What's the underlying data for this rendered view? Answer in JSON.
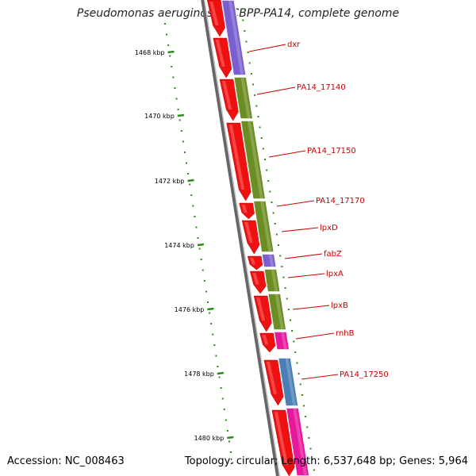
{
  "title": "Pseudomonas aeruginosa UCBPP-PA14, complete genome",
  "footer": {
    "accession": "Accession: NC_008463",
    "summary": "Topology: circular; Length: 6,537,648 bp; Genes: 5,964"
  },
  "colors": {
    "backbone": "#7f7f7f",
    "ruler_tick": "#2a8a1a",
    "label": "#cc0000",
    "strand_red": "#ee1111",
    "purple": "#7a5fd0",
    "olive": "#6b8e23",
    "magenta": "#e6189c",
    "steelblue": "#4a7fb5"
  },
  "ruler_labels": [
    "1468 kbp",
    "1470 kbp",
    "1472 kbp",
    "1474 kbp",
    "1476 kbp",
    "1478 kbp",
    "1480 kbp"
  ],
  "gene_labels": [
    {
      "name": "dxr"
    },
    {
      "name": "PA14_17140"
    },
    {
      "name": "PA14_17150"
    },
    {
      "name": "PA14_17170"
    },
    {
      "name": "lpxD"
    },
    {
      "name": "fabZ"
    },
    {
      "name": "lpxA"
    },
    {
      "name": "lpxB"
    },
    {
      "name": "rnhB"
    },
    {
      "name": "PA14_17250"
    }
  ]
}
